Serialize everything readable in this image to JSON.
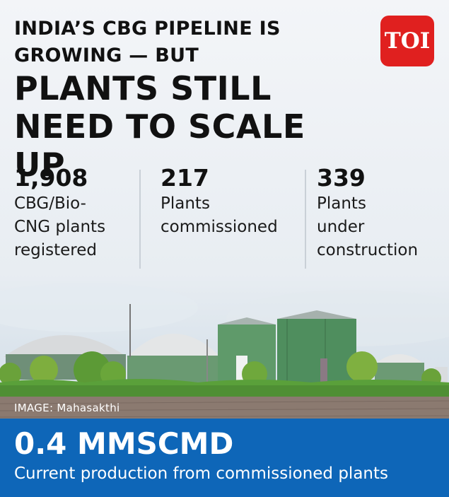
{
  "headline": {
    "line1": "INDIA’S CBG PIPELINE IS",
    "line2": "GROWING — BUT",
    "line3": "PLANTS STILL",
    "line4": "NEED TO SCALE UP"
  },
  "logo": {
    "text": "TOI",
    "color": "#e0201f"
  },
  "stats": [
    {
      "value": "1,908",
      "description": "CBG/Bio-\nCNG plants\nregistered"
    },
    {
      "value": "217",
      "description": "Plants\ncommissioned"
    },
    {
      "value": "339",
      "description": "Plants\nunder\nconstruction"
    }
  ],
  "image_caption": "IMAGE: Mahasakthi",
  "banner": {
    "value": "0.4 MMSCMD",
    "description": "Current production from commissioned plants",
    "color": "#0e66b8"
  }
}
